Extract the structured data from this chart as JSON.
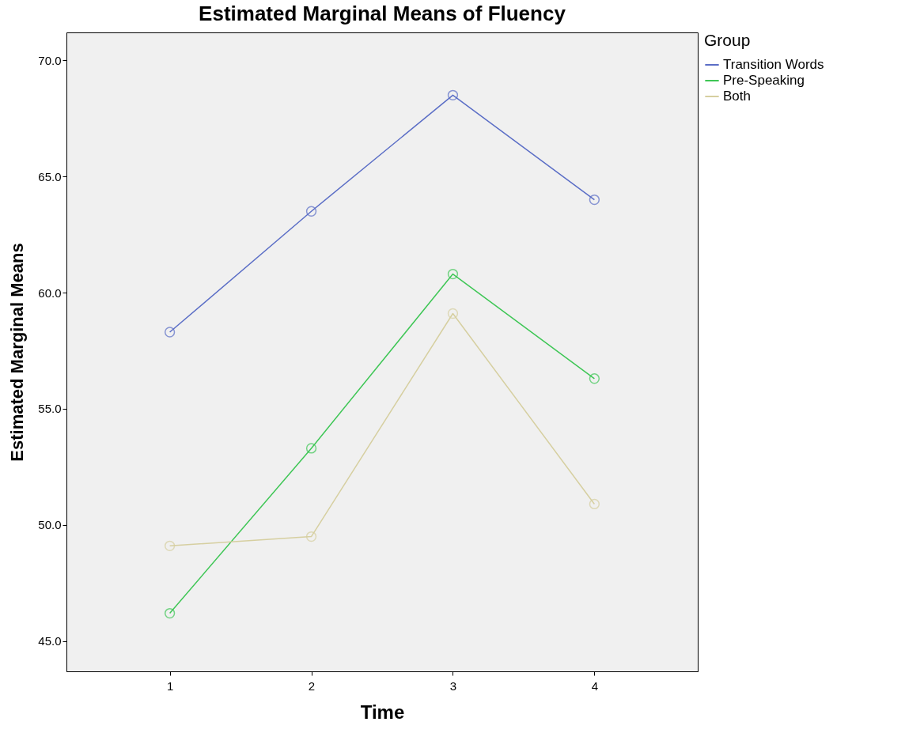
{
  "chart_data": {
    "type": "line",
    "title": "Estimated Marginal Means of Fluency",
    "xlabel": "Time",
    "ylabel": "Estimated Marginal Means",
    "legend_title": "Group",
    "x": [
      1,
      2,
      3,
      4
    ],
    "series": [
      {
        "name": "Transition Words",
        "color": "#5b6ec6",
        "values": [
          58.3,
          63.5,
          68.5,
          64.0
        ]
      },
      {
        "name": "Pre-Speaking",
        "color": "#3ec655",
        "values": [
          46.2,
          53.3,
          60.8,
          56.3
        ]
      },
      {
        "name": "Both",
        "color": "#d6cfa0",
        "values": [
          49.1,
          49.5,
          59.1,
          50.9
        ]
      }
    ],
    "xlim": [
      0.27,
      4.73
    ],
    "xticks": [
      1,
      2,
      3,
      4
    ],
    "ylim": [
      43.7,
      71.2
    ],
    "yticks": [
      {
        "value": 45,
        "label": "45.0"
      },
      {
        "value": 50,
        "label": "50.0"
      },
      {
        "value": 55,
        "label": "55.0"
      },
      {
        "value": 60,
        "label": "60.0"
      },
      {
        "value": 65,
        "label": "65.0"
      },
      {
        "value": 70,
        "label": "70.0"
      }
    ],
    "grid": false,
    "legend": "top right",
    "marker": "circle",
    "line_style": "solid"
  }
}
